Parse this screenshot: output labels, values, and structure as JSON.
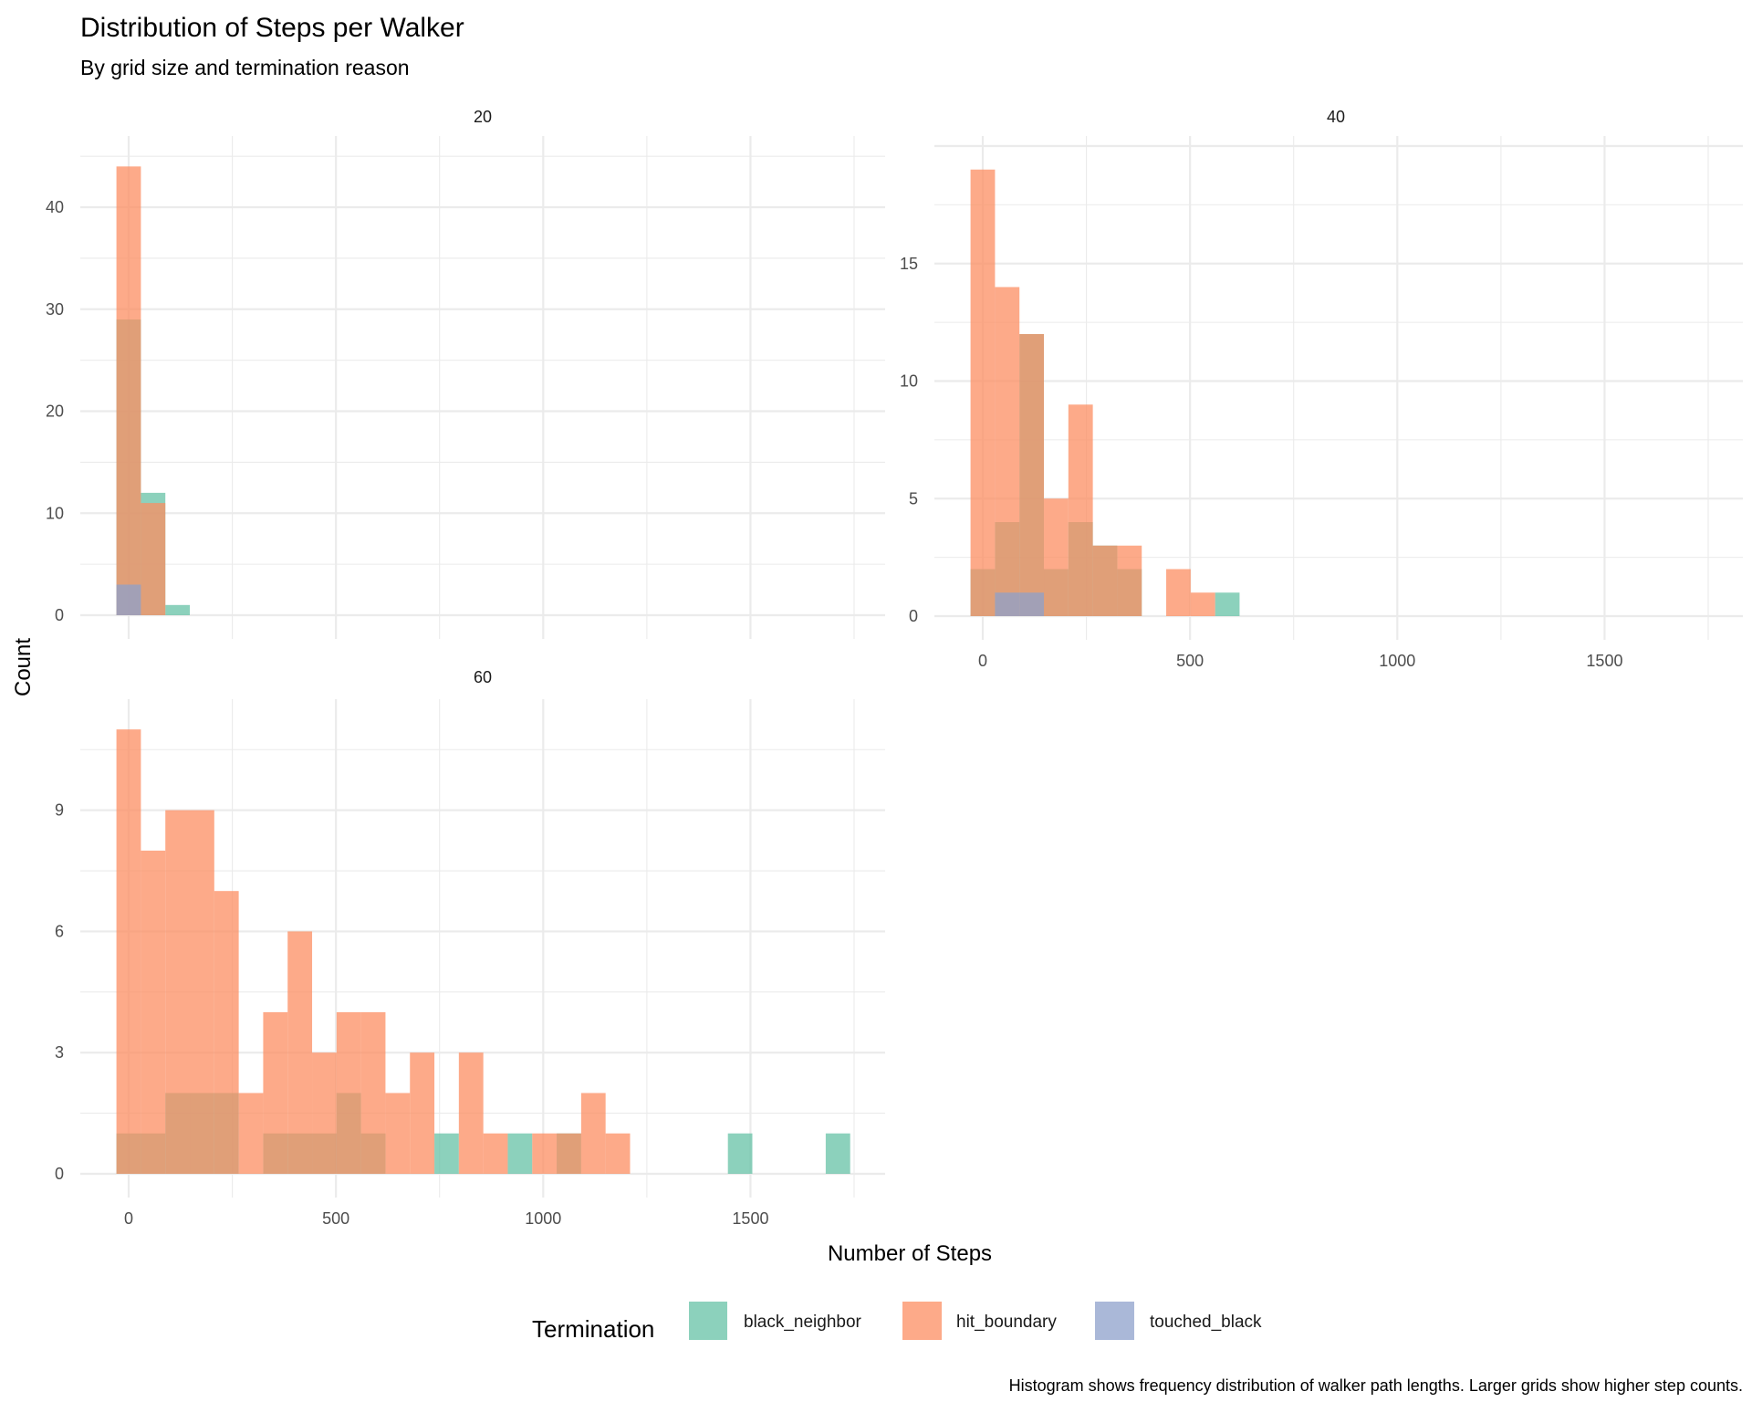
{
  "chart_data": {
    "type": "bar",
    "subtype": "faceted-histogram",
    "title": "Distribution of Steps per Walker",
    "subtitle": "By grid size and termination reason",
    "xlabel": "Number of Steps",
    "ylabel": "Count",
    "caption": "Histogram shows frequency distribution of walker path lengths. Larger grids show higher step counts.",
    "bin_width": 59,
    "xlim": [
      -60,
      1780
    ],
    "x_ticks": [
      0,
      500,
      1000,
      1500
    ],
    "x_tick_labels": [
      "0",
      "500",
      "1000",
      "1500"
    ],
    "grid": true,
    "legend": {
      "title": "Termination",
      "position": "bottom",
      "entries": [
        {
          "key": "black_neighbor",
          "label": "black_neighbor",
          "color": "#66C2A5"
        },
        {
          "key": "hit_boundary",
          "label": "hit_boundary",
          "color": "#FC8D62"
        },
        {
          "key": "touched_black",
          "label": "touched_black",
          "color": "#8DA0CB"
        }
      ]
    },
    "panels": [
      {
        "label": "20",
        "ylim": [
          0,
          46
        ],
        "y_ticks": [
          0,
          10,
          20,
          30,
          40
        ],
        "y_tick_labels": [
          "0",
          "10",
          "20",
          "30",
          "40"
        ],
        "show_x_labels": false,
        "series": [
          {
            "name": "black_neighbor",
            "bins": [
              {
                "x": 0,
                "count": 29
              },
              {
                "x": 59,
                "count": 12
              },
              {
                "x": 118,
                "count": 1
              }
            ]
          },
          {
            "name": "hit_boundary",
            "bins": [
              {
                "x": 0,
                "count": 44
              },
              {
                "x": 59,
                "count": 11
              }
            ]
          },
          {
            "name": "touched_black",
            "bins": [
              {
                "x": 0,
                "count": 3
              }
            ]
          }
        ]
      },
      {
        "label": "40",
        "ylim": [
          0,
          20
        ],
        "y_ticks": [
          0,
          5,
          10,
          15
        ],
        "y_tick_labels": [
          "0",
          "5",
          "10",
          "15"
        ],
        "show_x_labels": true,
        "series": [
          {
            "name": "black_neighbor",
            "bins": [
              {
                "x": 0,
                "count": 2
              },
              {
                "x": 59,
                "count": 4
              },
              {
                "x": 118,
                "count": 12
              },
              {
                "x": 177,
                "count": 2
              },
              {
                "x": 236,
                "count": 4
              },
              {
                "x": 295,
                "count": 3
              },
              {
                "x": 354,
                "count": 2
              },
              {
                "x": 590,
                "count": 1
              }
            ]
          },
          {
            "name": "hit_boundary",
            "bins": [
              {
                "x": 0,
                "count": 19
              },
              {
                "x": 59,
                "count": 14
              },
              {
                "x": 118,
                "count": 12
              },
              {
                "x": 177,
                "count": 5
              },
              {
                "x": 236,
                "count": 9
              },
              {
                "x": 295,
                "count": 3
              },
              {
                "x": 354,
                "count": 3
              },
              {
                "x": 472,
                "count": 2
              },
              {
                "x": 531,
                "count": 1
              }
            ]
          },
          {
            "name": "touched_black",
            "bins": [
              {
                "x": 59,
                "count": 1
              },
              {
                "x": 118,
                "count": 1
              }
            ]
          }
        ]
      },
      {
        "label": "60",
        "ylim": [
          0,
          11.5
        ],
        "y_ticks": [
          0,
          3,
          6,
          9
        ],
        "y_tick_labels": [
          "0",
          "3",
          "6",
          "9"
        ],
        "show_x_labels": true,
        "series": [
          {
            "name": "black_neighbor",
            "bins": [
              {
                "x": 0,
                "count": 1
              },
              {
                "x": 59,
                "count": 1
              },
              {
                "x": 118,
                "count": 2
              },
              {
                "x": 177,
                "count": 2
              },
              {
                "x": 236,
                "count": 2
              },
              {
                "x": 354,
                "count": 1
              },
              {
                "x": 413,
                "count": 1
              },
              {
                "x": 472,
                "count": 1
              },
              {
                "x": 531,
                "count": 2
              },
              {
                "x": 590,
                "count": 1
              },
              {
                "x": 767,
                "count": 1
              },
              {
                "x": 944,
                "count": 1
              },
              {
                "x": 1062,
                "count": 1
              },
              {
                "x": 1475,
                "count": 1
              },
              {
                "x": 1711,
                "count": 1
              }
            ]
          },
          {
            "name": "hit_boundary",
            "bins": [
              {
                "x": 0,
                "count": 11
              },
              {
                "x": 59,
                "count": 8
              },
              {
                "x": 118,
                "count": 9
              },
              {
                "x": 177,
                "count": 9
              },
              {
                "x": 236,
                "count": 7
              },
              {
                "x": 295,
                "count": 2
              },
              {
                "x": 354,
                "count": 4
              },
              {
                "x": 413,
                "count": 6
              },
              {
                "x": 472,
                "count": 3
              },
              {
                "x": 531,
                "count": 4
              },
              {
                "x": 590,
                "count": 4
              },
              {
                "x": 649,
                "count": 2
              },
              {
                "x": 708,
                "count": 3
              },
              {
                "x": 826,
                "count": 3
              },
              {
                "x": 885,
                "count": 1
              },
              {
                "x": 1003,
                "count": 1
              },
              {
                "x": 1062,
                "count": 1
              },
              {
                "x": 1121,
                "count": 2
              },
              {
                "x": 1180,
                "count": 1
              }
            ]
          },
          {
            "name": "touched_black",
            "bins": []
          }
        ]
      }
    ]
  }
}
